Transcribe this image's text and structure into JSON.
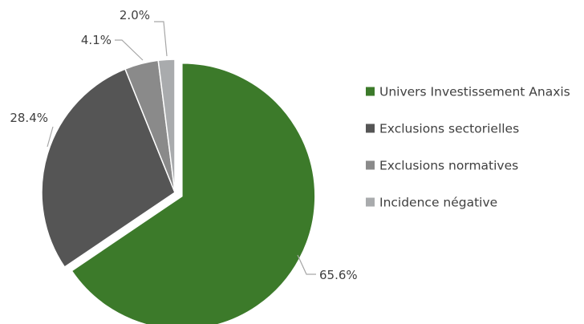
{
  "chart_data": {
    "type": "pie",
    "title": "",
    "slices": [
      {
        "label": "Univers Investissement Anaxis",
        "value": 65.6,
        "display": "65.6%",
        "color": "#3c7a2a",
        "exploded": true
      },
      {
        "label": "Exclusions sectorielles",
        "value": 28.4,
        "display": "28.4%",
        "color": "#555555",
        "exploded": false
      },
      {
        "label": "Exclusions normatives",
        "value": 4.1,
        "display": "4.1%",
        "color": "#8a8a8a",
        "exploded": false
      },
      {
        "label": "Incidence négative",
        "value": 2.0,
        "display": "2.0%",
        "color": "#a9abad",
        "exploded": false
      }
    ],
    "legend_position": "right",
    "start_angle": "12 o'clock, clockwise"
  }
}
